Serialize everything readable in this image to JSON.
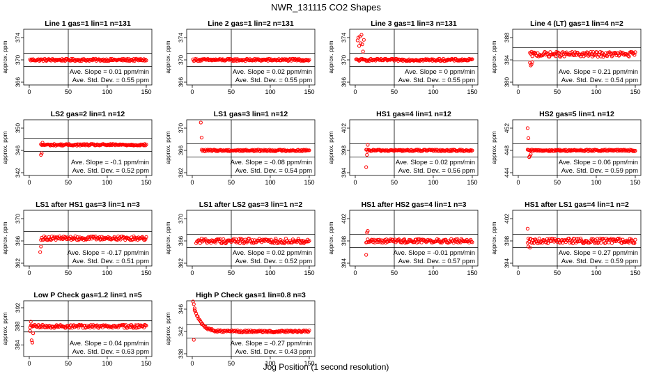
{
  "figure": {
    "title": "NWR_131115  CO2 Shapes",
    "xlabel": "Jog Position (1 second resolution)",
    "ylabel": "approx. ppm",
    "slope_prefix": "Ave. Slope = ",
    "slope_unit": " ppm/min",
    "sd_prefix": "Ave. Std. Dev. = ",
    "sd_unit": " ppm",
    "point_color": "#ff0000",
    "line_color": "#000000"
  },
  "chart_data": [
    {
      "type": "scatter",
      "title": "Line 1 gas=1 lin=1 n=131",
      "xlim": [
        0,
        150
      ],
      "xticks": [
        0,
        50,
        100,
        150
      ],
      "ylim": [
        365.5,
        375.5
      ],
      "yticks": [
        366,
        370,
        374
      ],
      "center": 370,
      "band": 1.2,
      "noise": 0.2,
      "start": 1,
      "shape": "flat",
      "slope": "0.01",
      "sd": "0.55"
    },
    {
      "type": "scatter",
      "title": "Line 2 gas=1 lin=2 n=131",
      "xlim": [
        0,
        150
      ],
      "xticks": [
        0,
        50,
        100,
        150
      ],
      "ylim": [
        365.5,
        375.5
      ],
      "yticks": [
        366,
        370,
        374
      ],
      "center": 370,
      "band": 1.2,
      "noise": 0.2,
      "start": 1,
      "shape": "flat",
      "slope": "0.02",
      "sd": "0.55"
    },
    {
      "type": "scatter",
      "title": "Line 3 gas=1 lin=3 n=131",
      "xlim": [
        0,
        150
      ],
      "xticks": [
        0,
        50,
        100,
        150
      ],
      "ylim": [
        365.5,
        375.5
      ],
      "yticks": [
        366,
        370,
        374
      ],
      "center": 370,
      "band": 1.2,
      "noise": 0.2,
      "start": 1,
      "shape": "spikes_start",
      "spikes": [
        [
          3,
          373.5
        ],
        [
          4,
          374.0
        ],
        [
          5,
          372.5
        ],
        [
          6,
          374.2
        ],
        [
          7,
          373.0
        ],
        [
          8,
          374.5
        ],
        [
          9,
          372.8
        ],
        [
          10,
          371.5
        ],
        [
          11,
          373.6
        ]
      ],
      "slope": "0",
      "sd": "0.55"
    },
    {
      "type": "scatter",
      "title": "Line 4 (LT) gas=1 lin=4 n=2",
      "xlim": [
        0,
        150
      ],
      "xticks": [
        0,
        50,
        100,
        150
      ],
      "ylim": [
        379.5,
        389.5
      ],
      "yticks": [
        380,
        384,
        388
      ],
      "center": 385,
      "band": 1.2,
      "noise": 0.45,
      "start": 15,
      "shape": "dip_start",
      "spikes": [
        [
          15,
          383.5
        ],
        [
          16,
          383.0
        ],
        [
          17,
          383.2
        ],
        [
          18,
          383.6
        ]
      ],
      "slope": "0.21",
      "sd": "0.54"
    },
    {
      "type": "scatter",
      "title": "LS2 gas=2 lin=1 n=12",
      "xlim": [
        0,
        150
      ],
      "xticks": [
        0,
        50,
        100,
        150
      ],
      "ylim": [
        341.5,
        351.5
      ],
      "yticks": [
        342,
        346,
        350
      ],
      "center": 347,
      "band": 1.2,
      "noise": 0.15,
      "start": 15,
      "shape": "dip_start",
      "spikes": [
        [
          15,
          345.2
        ],
        [
          16,
          345.5
        ],
        [
          17,
          347.4
        ]
      ],
      "slope": "-0.1",
      "sd": "0.52"
    },
    {
      "type": "scatter",
      "title": "LS1 gas=3 lin=1 n=12",
      "xlim": [
        0,
        150
      ],
      "xticks": [
        0,
        50,
        100,
        150
      ],
      "ylim": [
        361.5,
        371.5
      ],
      "yticks": [
        362,
        366,
        370
      ],
      "center": 366,
      "band": 1.2,
      "noise": 0.15,
      "start": 12,
      "shape": "spikes_start",
      "spikes": [
        [
          11,
          371.0
        ],
        [
          12,
          368.3
        ]
      ],
      "slope": "-0.08",
      "sd": "0.54"
    },
    {
      "type": "scatter",
      "title": "HS1 gas=4 lin=1 n=12",
      "xlim": [
        0,
        150
      ],
      "xticks": [
        0,
        50,
        100,
        150
      ],
      "ylim": [
        393.5,
        403.5
      ],
      "yticks": [
        394,
        398,
        402
      ],
      "center": 398,
      "band": 1.2,
      "noise": 0.15,
      "start": 14,
      "shape": "dip_start",
      "spikes": [
        [
          14,
          395.0
        ],
        [
          15,
          397.2
        ],
        [
          16,
          399.0
        ]
      ],
      "slope": "0.02",
      "sd": "0.56"
    },
    {
      "type": "scatter",
      "title": "HS2 gas=5 lin=1 n=12",
      "xlim": [
        0,
        150
      ],
      "xticks": [
        0,
        50,
        100,
        150
      ],
      "ylim": [
        443.5,
        453.5
      ],
      "yticks": [
        444,
        448,
        452
      ],
      "center": 448,
      "band": 1.2,
      "noise": 0.15,
      "start": 12,
      "shape": "spikes_start",
      "spikes": [
        [
          12,
          452.0
        ],
        [
          13,
          450.2
        ],
        [
          14,
          446.8
        ],
        [
          15,
          447.0
        ],
        [
          16,
          447.3
        ]
      ],
      "slope": "0.06",
      "sd": "0.59"
    },
    {
      "type": "scatter",
      "title": "LS1 after HS1 gas=3 lin=1 n=3",
      "xlim": [
        0,
        150
      ],
      "xticks": [
        0,
        50,
        100,
        150
      ],
      "ylim": [
        361.5,
        371.5
      ],
      "yticks": [
        362,
        366,
        370
      ],
      "center": 366.5,
      "band": 1.2,
      "noise": 0.35,
      "start": 15,
      "shape": "dip_start",
      "spikes": [
        [
          14,
          364.0
        ],
        [
          15,
          365.0
        ]
      ],
      "slope": "-0.17",
      "sd": "0.51"
    },
    {
      "type": "scatter",
      "title": "LS1 after LS2 gas=3 lin=1 n=2",
      "xlim": [
        0,
        150
      ],
      "xticks": [
        0,
        50,
        100,
        150
      ],
      "ylim": [
        361.5,
        371.5
      ],
      "yticks": [
        362,
        366,
        370
      ],
      "center": 366,
      "band": 1.2,
      "noise": 0.45,
      "start": 5,
      "shape": "flat",
      "slope": "0.02",
      "sd": "0.52"
    },
    {
      "type": "scatter",
      "title": "HS1 after HS2 gas=4 lin=1 n=3",
      "xlim": [
        0,
        150
      ],
      "xticks": [
        0,
        50,
        100,
        150
      ],
      "ylim": [
        393.5,
        403.5
      ],
      "yticks": [
        394,
        398,
        402
      ],
      "center": 398,
      "band": 1.2,
      "noise": 0.35,
      "start": 14,
      "shape": "dip_start",
      "spikes": [
        [
          14,
          395.5
        ],
        [
          15,
          399.5
        ],
        [
          16,
          399.8
        ]
      ],
      "slope": "-0.01",
      "sd": "0.57"
    },
    {
      "type": "scatter",
      "title": "HS1 after LS1 gas=4 lin=1 n=2",
      "xlim": [
        0,
        150
      ],
      "xticks": [
        0,
        50,
        100,
        150
      ],
      "ylim": [
        393.5,
        403.5
      ],
      "yticks": [
        394,
        398,
        402
      ],
      "center": 398,
      "band": 1.2,
      "noise": 0.45,
      "start": 12,
      "shape": "spikes_start",
      "spikes": [
        [
          12,
          400.2
        ],
        [
          13,
          397.0
        ],
        [
          15,
          396.8
        ]
      ],
      "slope": "0.27",
      "sd": "0.59"
    },
    {
      "type": "scatter",
      "title": "Low P Check gas=1.2 lin=1 n=5",
      "xlim": [
        0,
        150
      ],
      "xticks": [
        0,
        50,
        100,
        150
      ],
      "ylim": [
        381.5,
        393.5
      ],
      "yticks": [
        384,
        388,
        392
      ],
      "center": 388,
      "band": 1.2,
      "noise": 0.35,
      "start": 1,
      "shape": "spikes_start",
      "spikes": [
        [
          1,
          387.0
        ],
        [
          2,
          389.0
        ],
        [
          3,
          385.0
        ],
        [
          4,
          384.5
        ],
        [
          5,
          386.5
        ]
      ],
      "slope": "0.04",
      "sd": "0.63"
    },
    {
      "type": "scatter",
      "title": "High P Check gas=1 lin=0.8 n=3",
      "xlim": [
        0,
        150
      ],
      "xticks": [
        0,
        50,
        100,
        150
      ],
      "ylim": [
        337.5,
        347.5
      ],
      "yticks": [
        338,
        342,
        346
      ],
      "center": 342,
      "band": 1.2,
      "noise": 0.2,
      "start": 1,
      "shape": "decay",
      "decay_amp": 5.5,
      "decay_tau": 8,
      "spikes": [
        [
          2,
          340.5
        ],
        [
          3,
          345.8
        ]
      ],
      "slope": "-0.27",
      "sd": "0.43"
    }
  ]
}
